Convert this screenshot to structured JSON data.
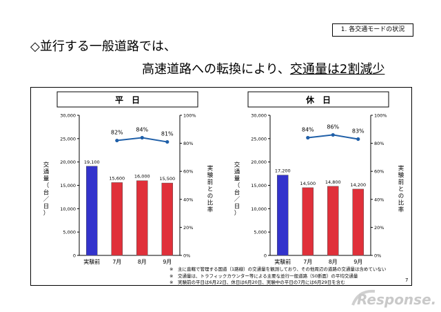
{
  "section_tag": "1. 各交通モードの状況",
  "headline": {
    "line1": "◇並行する一般道路では、",
    "line2_before": "高速道路への転換により、",
    "line2_underlined": "交通量は2割減少"
  },
  "chart_data": [
    {
      "type": "bar",
      "title": "平　日",
      "categories": [
        "実験前",
        "7月",
        "8月",
        "9月"
      ],
      "values": [
        19100,
        15600,
        16000,
        15500
      ],
      "bar_labels": [
        "19,100",
        "15,600",
        "16,000",
        "15,500"
      ],
      "bar_colors": [
        "#3333cc",
        "#e0303a",
        "#e0303a",
        "#e0303a"
      ],
      "ylabel": "交通量（台／日）",
      "y2label": "実験前との比率",
      "ylim": [
        0,
        30000
      ],
      "yticks": [
        "0",
        "5,000",
        "10,000",
        "15,000",
        "20,000",
        "25,000",
        "30,000"
      ],
      "y2lim": [
        0,
        100
      ],
      "y2ticks": [
        "0%",
        "20%",
        "40%",
        "60%",
        "80%",
        "100%"
      ],
      "line": {
        "categories": [
          "7月",
          "8月",
          "9月"
        ],
        "values": [
          82,
          84,
          81
        ],
        "labels": [
          "82%",
          "84%",
          "81%"
        ],
        "color": "#1f5fa8"
      },
      "grid": false
    },
    {
      "type": "bar",
      "title": "休　日",
      "categories": [
        "実験前",
        "7月",
        "8月",
        "9月"
      ],
      "values": [
        17200,
        14500,
        14800,
        14200
      ],
      "bar_labels": [
        "17,200",
        "14,500",
        "14,800",
        "14,200"
      ],
      "bar_colors": [
        "#3333cc",
        "#e0303a",
        "#e0303a",
        "#e0303a"
      ],
      "ylabel": "交通量（台／日）",
      "y2label": "実験前との比率",
      "ylim": [
        0,
        30000
      ],
      "yticks": [
        "0",
        "5,000",
        "10,000",
        "15,000",
        "20,000",
        "25,000",
        "30,000"
      ],
      "y2lim": [
        0,
        100
      ],
      "y2ticks": [
        "0%",
        "20%",
        "40%",
        "60%",
        "80%",
        "100%"
      ],
      "line": {
        "categories": [
          "7月",
          "8月",
          "9月"
        ],
        "values": [
          84,
          86,
          83
        ],
        "labels": [
          "84%",
          "86%",
          "83%"
        ],
        "color": "#1f5fa8"
      },
      "grid": false
    }
  ],
  "notes": [
    "※　主に直轄で管理する国道（1路線）の交通量を観測しており、その他周辺の道路の交通量は含めていない",
    "※　交通量は、トラフィックカウンター等による主要な並行一般道路（50断面）の平均交通量",
    "※　実験前の平日は6月22日、休日は6月20日、実験中の平日の7月には6月29日を含む"
  ],
  "page_number": "7",
  "logo_text": "Response."
}
